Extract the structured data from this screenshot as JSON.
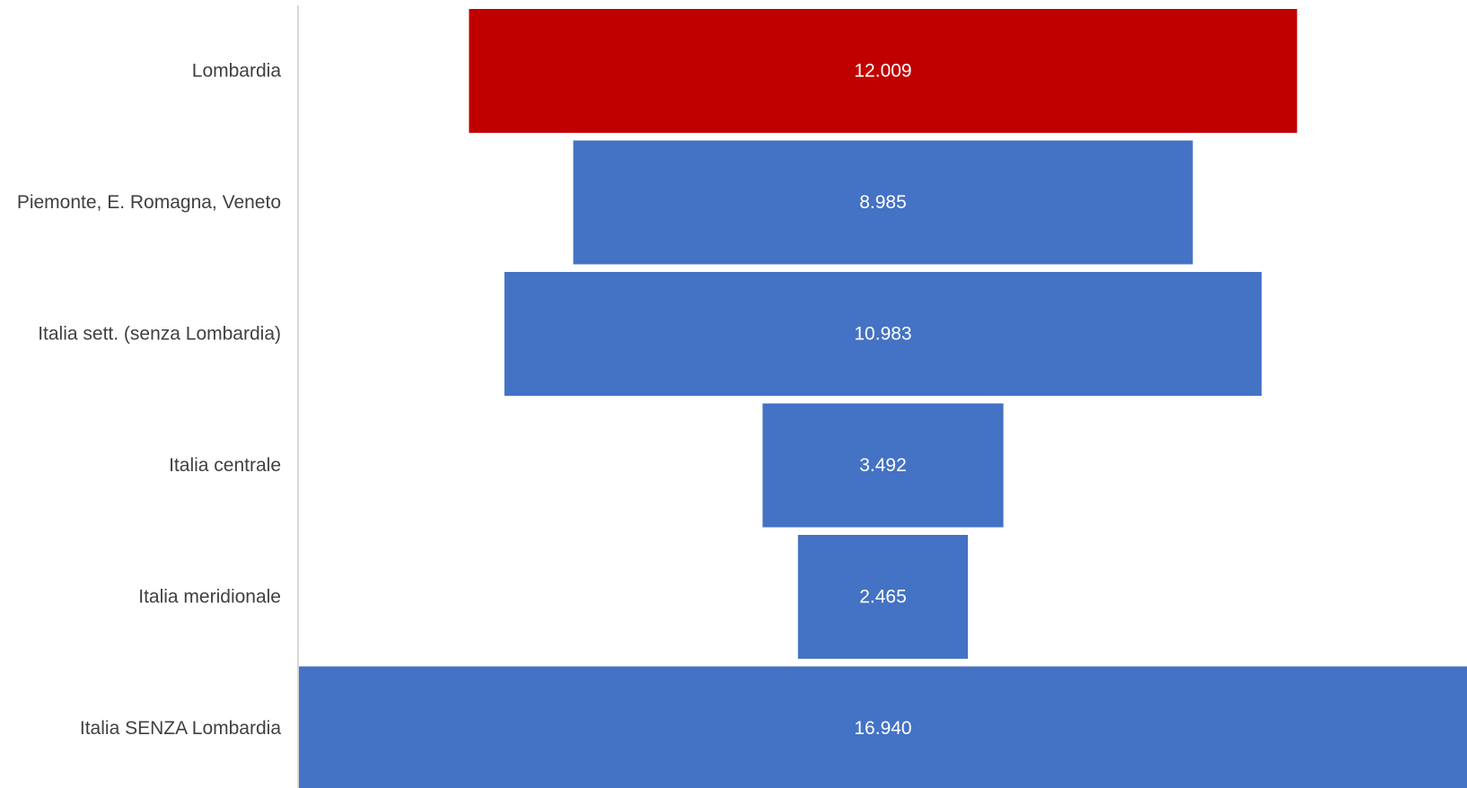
{
  "chart_data": {
    "type": "bar",
    "subtype": "funnel",
    "orientation": "horizontal",
    "categories": [
      "Lombardia",
      "Piemonte, E. Romagna, Veneto",
      "Italia sett. (senza Lombardia)",
      "Italia centrale",
      "Italia meridionale",
      "Italia SENZA Lombardia"
    ],
    "values": [
      12009,
      8985,
      10983,
      3492,
      2465,
      16940
    ],
    "value_labels": [
      "12.009",
      "8.985",
      "10.983",
      "3.492",
      "2.465",
      "16.940"
    ],
    "colors": [
      "#C00000",
      "#4472C4",
      "#4472C4",
      "#4472C4",
      "#4472C4",
      "#4472C4"
    ],
    "xlim": [
      0,
      16940
    ],
    "grid": false,
    "legend": "none"
  }
}
